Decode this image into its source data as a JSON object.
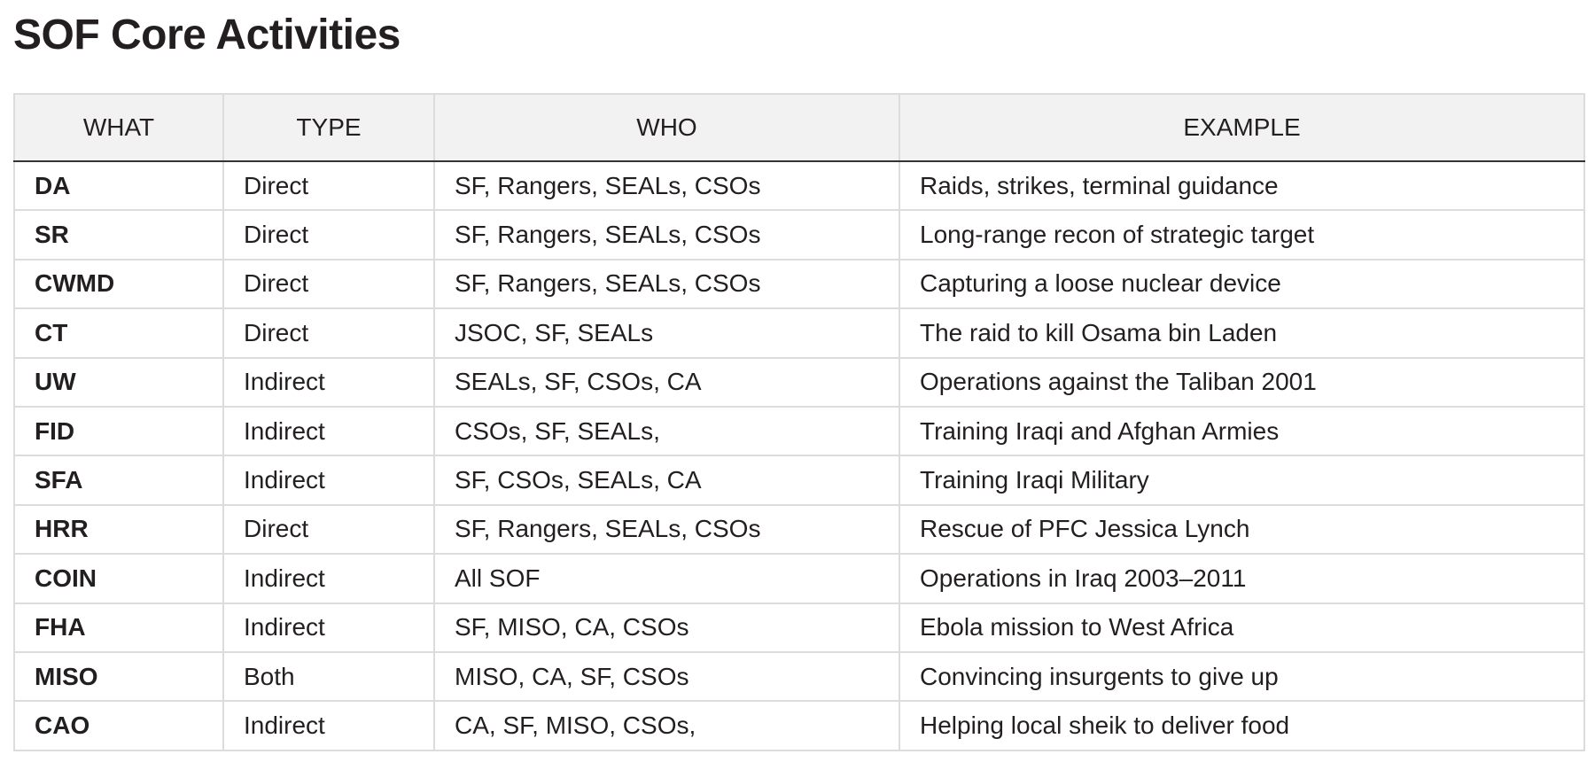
{
  "title": "SOF Core Activities",
  "table": {
    "headers": [
      "WHAT",
      "TYPE",
      "WHO",
      "EXAMPLE"
    ],
    "rows": [
      [
        "DA",
        "Direct",
        "SF, Rangers, SEALs, CSOs",
        "Raids, strikes, terminal guidance"
      ],
      [
        "SR",
        "Direct",
        "SF, Rangers, SEALs, CSOs",
        "Long-range recon of strategic target"
      ],
      [
        "CWMD",
        "Direct",
        "SF, Rangers, SEALs, CSOs",
        "Capturing a loose nuclear device"
      ],
      [
        "CT",
        "Direct",
        "JSOC, SF, SEALs",
        "The raid to kill Osama bin Laden"
      ],
      [
        "UW",
        "Indirect",
        "SEALs, SF, CSOs, CA",
        "Operations against the Taliban 2001"
      ],
      [
        "FID",
        "Indirect",
        "CSOs, SF, SEALs,",
        "Training Iraqi and Afghan Armies"
      ],
      [
        "SFA",
        "Indirect",
        "SF, CSOs, SEALs, CA",
        "Training Iraqi Military"
      ],
      [
        "HRR",
        "Direct",
        "SF, Rangers, SEALs, CSOs",
        "Rescue of PFC Jessica Lynch"
      ],
      [
        "COIN",
        "Indirect",
        "All SOF",
        "Operations in Iraq 2003–2011"
      ],
      [
        "FHA",
        "Indirect",
        "SF, MISO, CA, CSOs",
        "Ebola mission to West Africa"
      ],
      [
        "MISO",
        "Both",
        "MISO, CA, SF, CSOs",
        "Convincing insurgents to give up"
      ],
      [
        "CAO",
        "Indirect",
        "CA, SF, MISO, CSOs,",
        "Helping local sheik to deliver food"
      ]
    ]
  }
}
